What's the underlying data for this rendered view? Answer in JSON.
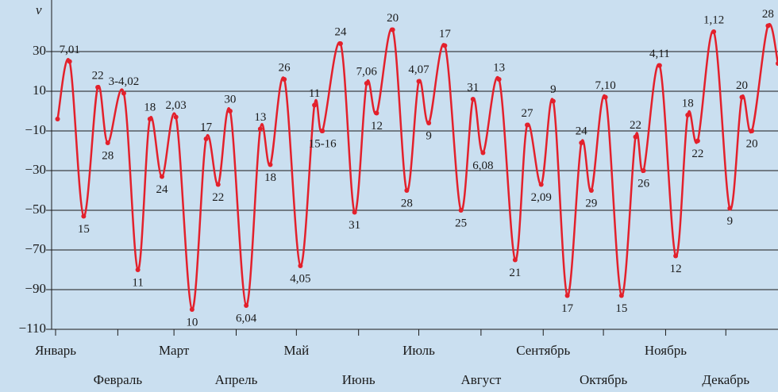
{
  "chart_data": {
    "type": "line",
    "y_label": "v",
    "color": "#e3202b",
    "x": [
      1,
      7,
      14,
      21,
      26,
      34,
      41,
      47,
      53,
      60,
      68,
      75,
      81,
      87,
      95,
      102,
      107,
      114,
      122,
      129,
      133,
      142,
      149,
      155,
      160,
      168,
      175,
      181,
      186,
      194,
      202,
      208,
      213,
      221,
      229,
      235,
      242,
      248,
      255,
      262,
      267,
      274,
      282,
      289,
      293,
      301,
      309,
      315,
      320,
      328,
      336,
      342,
      347,
      355,
      360
    ],
    "values": [
      -4,
      25,
      -53,
      12,
      -16,
      9,
      -80,
      -4,
      -33,
      -3,
      -100,
      -14,
      -37,
      0,
      -98,
      -9,
      -27,
      16,
      -78,
      3,
      -10,
      34,
      -51,
      14,
      -1,
      41,
      -40,
      15,
      -6,
      33,
      -50,
      6,
      -21,
      16,
      -75,
      -7,
      -37,
      5,
      -93,
      -16,
      -40,
      7,
      -93,
      -13,
      -30,
      23,
      -73,
      -2,
      -15,
      40,
      -49,
      7,
      -10,
      43,
      24
    ],
    "point_labels": [
      null,
      "7,01",
      "15",
      "22",
      "28",
      "3-4,02",
      "11",
      "18",
      "24",
      "2,03",
      "10",
      "17",
      "22",
      "30",
      "6,04",
      "13",
      "18",
      "26",
      "4,05",
      "11",
      "15-16",
      "24",
      "31",
      "7,06",
      "12",
      "20",
      "28",
      "4,07",
      "9",
      "17",
      "25",
      "31",
      "6,08",
      "13",
      "21",
      "27",
      "2,09",
      "9",
      "17",
      "24",
      "29",
      "7,10",
      "15",
      "22",
      "26",
      "4,11",
      "12",
      "18",
      "22",
      "1,12",
      "9",
      "20",
      "20",
      "28",
      null
    ],
    "xlim": [
      0,
      360
    ],
    "xticks": [
      {
        "value": 0,
        "label": "Январь"
      },
      {
        "value": 31,
        "label": "Февраль"
      },
      {
        "value": 59,
        "label": "Март"
      },
      {
        "value": 90,
        "label": "Апрель"
      },
      {
        "value": 120,
        "label": "Май"
      },
      {
        "value": 151,
        "label": "Июнь"
      },
      {
        "value": 181,
        "label": "Июль"
      },
      {
        "value": 212,
        "label": "Август"
      },
      {
        "value": 243,
        "label": "Сентябрь"
      },
      {
        "value": 273,
        "label": "Октябрь"
      },
      {
        "value": 304,
        "label": "Ноябрь"
      },
      {
        "value": 334,
        "label": "Декабрь"
      }
    ],
    "ylim": [
      -110,
      50
    ],
    "yticks": [
      {
        "value": -110,
        "label": "−110"
      },
      {
        "value": -90,
        "label": "−90"
      },
      {
        "value": -70,
        "label": "−70"
      },
      {
        "value": -50,
        "label": "−50"
      },
      {
        "value": -30,
        "label": "−30"
      },
      {
        "value": -10,
        "label": "−10"
      },
      10,
      30
    ],
    "grid": true
  }
}
